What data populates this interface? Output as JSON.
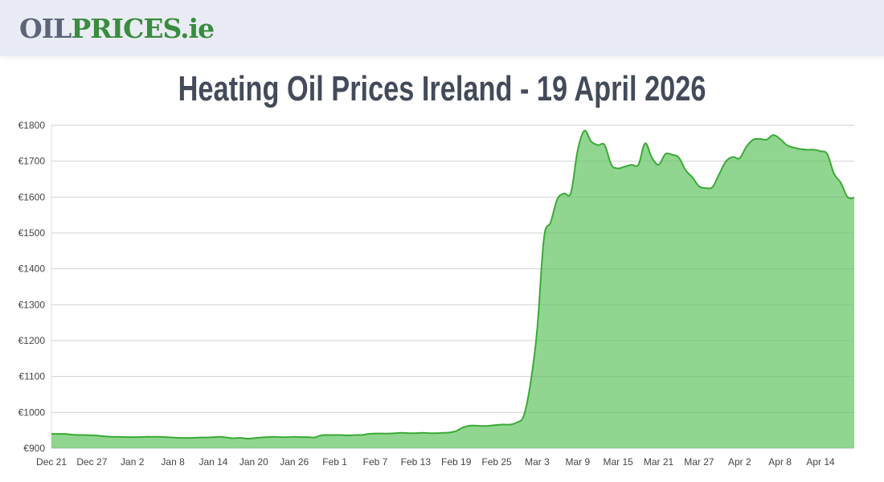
{
  "header": {
    "logo_part1": "OIL",
    "logo_part2": "PRICES.ie"
  },
  "page_title": "Heating Oil Prices Ireland - 19 April 2026",
  "chart_data": {
    "type": "area",
    "title": "",
    "xlabel": "",
    "ylabel": "",
    "start_date": "2025-12-21",
    "end_date": "2026-04-19",
    "ylim": [
      900,
      1800
    ],
    "y_ticks": [
      "€900",
      "€1000",
      "€1100",
      "€1200",
      "€1300",
      "€1400",
      "€1500",
      "€1600",
      "€1700",
      "€1800"
    ],
    "x_ticks": [
      "Dec 21",
      "Dec 27",
      "Jan 2",
      "Jan 8",
      "Jan 14",
      "Jan 20",
      "Jan 26",
      "Feb 1",
      "Feb 7",
      "Feb 13",
      "Feb 19",
      "Feb 25",
      "Mar 3",
      "Mar 9",
      "Mar 15",
      "Mar 21",
      "Mar 27",
      "Apr 2",
      "Apr 8",
      "Apr 14"
    ],
    "grid": true,
    "line_color": "#3aaa35",
    "fill_color": "#90d690",
    "values": [
      940,
      940,
      940,
      938,
      937,
      937,
      936,
      935,
      933,
      932,
      932,
      931,
      931,
      931,
      932,
      932,
      932,
      931,
      930,
      929,
      929,
      929,
      930,
      930,
      931,
      932,
      930,
      928,
      929,
      927,
      928,
      930,
      931,
      932,
      931,
      931,
      932,
      931,
      931,
      930,
      936,
      937,
      937,
      937,
      936,
      937,
      937,
      940,
      941,
      941,
      941,
      942,
      943,
      942,
      942,
      943,
      942,
      942,
      943,
      944,
      948,
      958,
      963,
      963,
      962,
      963,
      965,
      966,
      966,
      972,
      990,
      1080,
      1231,
      1485,
      1530,
      1595,
      1610,
      1612,
      1730,
      1785,
      1755,
      1745,
      1745,
      1690,
      1680,
      1685,
      1690,
      1690,
      1750,
      1710,
      1690,
      1720,
      1718,
      1710,
      1675,
      1655,
      1630,
      1625,
      1628,
      1665,
      1700,
      1712,
      1708,
      1740,
      1760,
      1762,
      1760,
      1773,
      1762,
      1745,
      1738,
      1734,
      1732,
      1732,
      1728,
      1720,
      1665,
      1640,
      1600,
      1598
    ]
  }
}
